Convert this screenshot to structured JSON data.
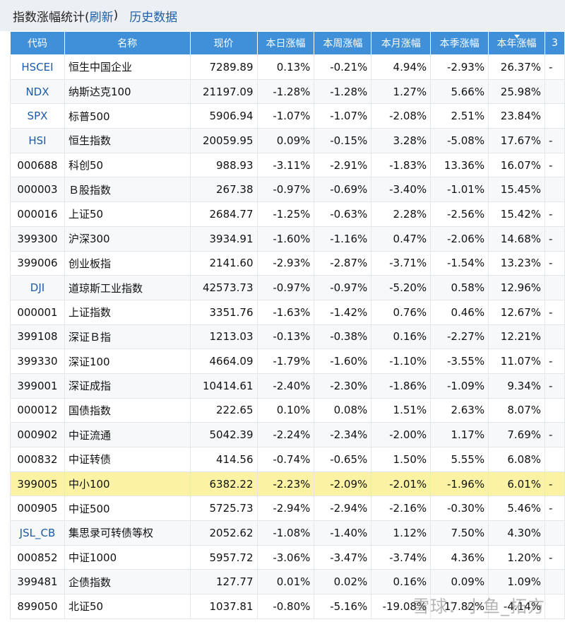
{
  "title": {
    "prefix": "指数涨幅统计(",
    "refresh": "刷新",
    "suffix": ")",
    "history": "历史数据"
  },
  "columns": [
    "代码",
    "名称",
    "现价",
    "本日涨幅",
    "本周涨幅",
    "本月涨幅",
    "本季涨幅",
    "本年涨幅",
    "3"
  ],
  "sorted_column": "本年涨幅",
  "rows": [
    {
      "code": "HSCEI",
      "name": "恒生中国企业",
      "price": "7289.89",
      "day": "0.13%",
      "week": "-0.21%",
      "month": "4.94%",
      "quarter": "-2.93%",
      "year": "26.37%",
      "extra": "-"
    },
    {
      "code": "NDX",
      "name": "纳斯达克100",
      "price": "21197.09",
      "day": "-1.28%",
      "week": "-1.28%",
      "month": "1.27%",
      "quarter": "5.66%",
      "year": "25.98%",
      "extra": ""
    },
    {
      "code": "SPX",
      "name": "标普500",
      "price": "5906.94",
      "day": "-1.07%",
      "week": "-1.07%",
      "month": "-2.08%",
      "quarter": "2.51%",
      "year": "23.84%",
      "extra": ""
    },
    {
      "code": "HSI",
      "name": "恒生指数",
      "price": "20059.95",
      "day": "0.09%",
      "week": "-0.15%",
      "month": "3.28%",
      "quarter": "-5.08%",
      "year": "17.67%",
      "extra": "-"
    },
    {
      "code": "000688",
      "name": "科创50",
      "price": "988.93",
      "day": "-3.11%",
      "week": "-2.91%",
      "month": "-1.83%",
      "quarter": "13.36%",
      "year": "16.07%",
      "extra": "-"
    },
    {
      "code": "000003",
      "name": "Ｂ股指数",
      "price": "267.38",
      "day": "-0.97%",
      "week": "-0.69%",
      "month": "-3.40%",
      "quarter": "-1.01%",
      "year": "15.45%",
      "extra": ""
    },
    {
      "code": "000016",
      "name": "上证50",
      "price": "2684.77",
      "day": "-1.25%",
      "week": "-0.63%",
      "month": "2.28%",
      "quarter": "-2.56%",
      "year": "15.42%",
      "extra": "-"
    },
    {
      "code": "399300",
      "name": "沪深300",
      "price": "3934.91",
      "day": "-1.60%",
      "week": "-1.16%",
      "month": "0.47%",
      "quarter": "-2.06%",
      "year": "14.68%",
      "extra": "-"
    },
    {
      "code": "399006",
      "name": "创业板指",
      "price": "2141.60",
      "day": "-2.93%",
      "week": "-2.87%",
      "month": "-3.71%",
      "quarter": "-1.54%",
      "year": "13.23%",
      "extra": "-"
    },
    {
      "code": "DJI",
      "name": "道琼斯工业指数",
      "price": "42573.73",
      "day": "-0.97%",
      "week": "-0.97%",
      "month": "-5.20%",
      "quarter": "0.58%",
      "year": "12.96%",
      "extra": ""
    },
    {
      "code": "000001",
      "name": "上证指数",
      "price": "3351.76",
      "day": "-1.63%",
      "week": "-1.42%",
      "month": "0.76%",
      "quarter": "0.46%",
      "year": "12.67%",
      "extra": "-"
    },
    {
      "code": "399108",
      "name": "深证Ｂ指",
      "price": "1213.03",
      "day": "-0.13%",
      "week": "-0.38%",
      "month": "0.16%",
      "quarter": "-2.27%",
      "year": "12.21%",
      "extra": ""
    },
    {
      "code": "399330",
      "name": "深证100",
      "price": "4664.09",
      "day": "-1.79%",
      "week": "-1.60%",
      "month": "-1.10%",
      "quarter": "-3.55%",
      "year": "11.07%",
      "extra": "-"
    },
    {
      "code": "399001",
      "name": "深证成指",
      "price": "10414.61",
      "day": "-2.40%",
      "week": "-2.30%",
      "month": "-1.86%",
      "quarter": "-1.09%",
      "year": "9.34%",
      "extra": "-"
    },
    {
      "code": "000012",
      "name": "国债指数",
      "price": "222.65",
      "day": "0.10%",
      "week": "0.08%",
      "month": "1.51%",
      "quarter": "2.63%",
      "year": "8.07%",
      "extra": ""
    },
    {
      "code": "000902",
      "name": "中证流通",
      "price": "5042.39",
      "day": "-2.24%",
      "week": "-2.34%",
      "month": "-2.00%",
      "quarter": "1.17%",
      "year": "7.69%",
      "extra": "-"
    },
    {
      "code": "000832",
      "name": "中证转债",
      "price": "414.56",
      "day": "-0.74%",
      "week": "-0.65%",
      "month": "1.50%",
      "quarter": "5.55%",
      "year": "6.08%",
      "extra": ""
    },
    {
      "code": "399005",
      "name": "中小100",
      "price": "6382.22",
      "day": "-2.23%",
      "week": "-2.09%",
      "month": "-2.01%",
      "quarter": "-1.96%",
      "year": "6.01%",
      "extra": "-",
      "highlight": true
    },
    {
      "code": "000905",
      "name": "中证500",
      "price": "5725.73",
      "day": "-2.94%",
      "week": "-2.94%",
      "month": "-2.16%",
      "quarter": "-0.30%",
      "year": "5.46%",
      "extra": "-"
    },
    {
      "code": "JSL_CB",
      "name": "集思录可转债等权",
      "price": "2052.62",
      "day": "-1.08%",
      "week": "-1.40%",
      "month": "1.12%",
      "quarter": "7.50%",
      "year": "4.30%",
      "extra": ""
    },
    {
      "code": "000852",
      "name": "中证1000",
      "price": "5957.72",
      "day": "-3.06%",
      "week": "-3.47%",
      "month": "-3.74%",
      "quarter": "4.36%",
      "year": "1.20%",
      "extra": "-"
    },
    {
      "code": "399481",
      "name": "企债指数",
      "price": "127.77",
      "day": "0.01%",
      "week": "0.02%",
      "month": "0.16%",
      "quarter": "0.09%",
      "year": "1.09%",
      "extra": ""
    },
    {
      "code": "899050",
      "name": "北证50",
      "price": "1037.81",
      "day": "-0.80%",
      "week": "-5.16%",
      "month": "-19.08%",
      "quarter": "17.82%",
      "year": "-4.14%",
      "extra": ""
    }
  ],
  "watermark": "雪球：小鱼_拓方",
  "colors": {
    "header_bg": "#3f8fd9",
    "positive": "#a11a1a",
    "negative": "#111111",
    "highlight_row": "#fbf3a3",
    "code_text": "#1f4f96"
  }
}
